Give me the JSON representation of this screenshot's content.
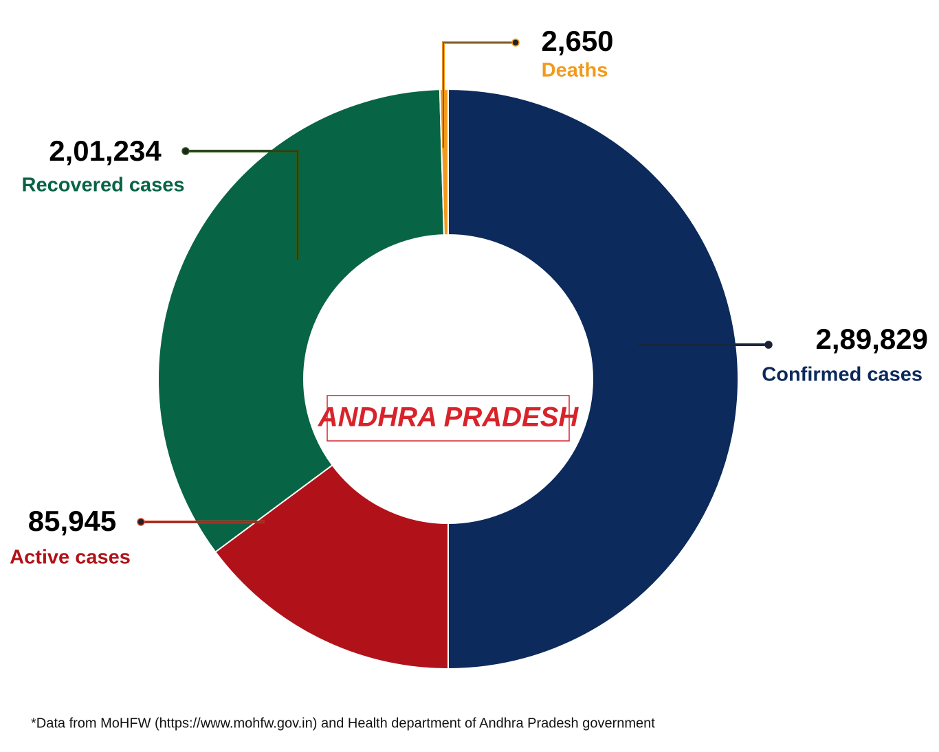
{
  "chart_data": {
    "type": "donut",
    "categories": [
      "Confirmed cases",
      "Active cases",
      "Recovered cases",
      "Deaths"
    ],
    "values": [
      289829,
      85945,
      201234,
      2650
    ],
    "value_labels": [
      "2,89,829",
      "85,945",
      "2,01,234",
      "2,650"
    ],
    "colors": [
      "#0c2a5b",
      "#b11219",
      "#076444",
      "#f29a1c"
    ],
    "center_label": "ANDHRA PRADESH",
    "footnote": "*Data from MoHFW (https://www.mohfw.gov.in) and Health department of Andhra Pradesh government"
  }
}
